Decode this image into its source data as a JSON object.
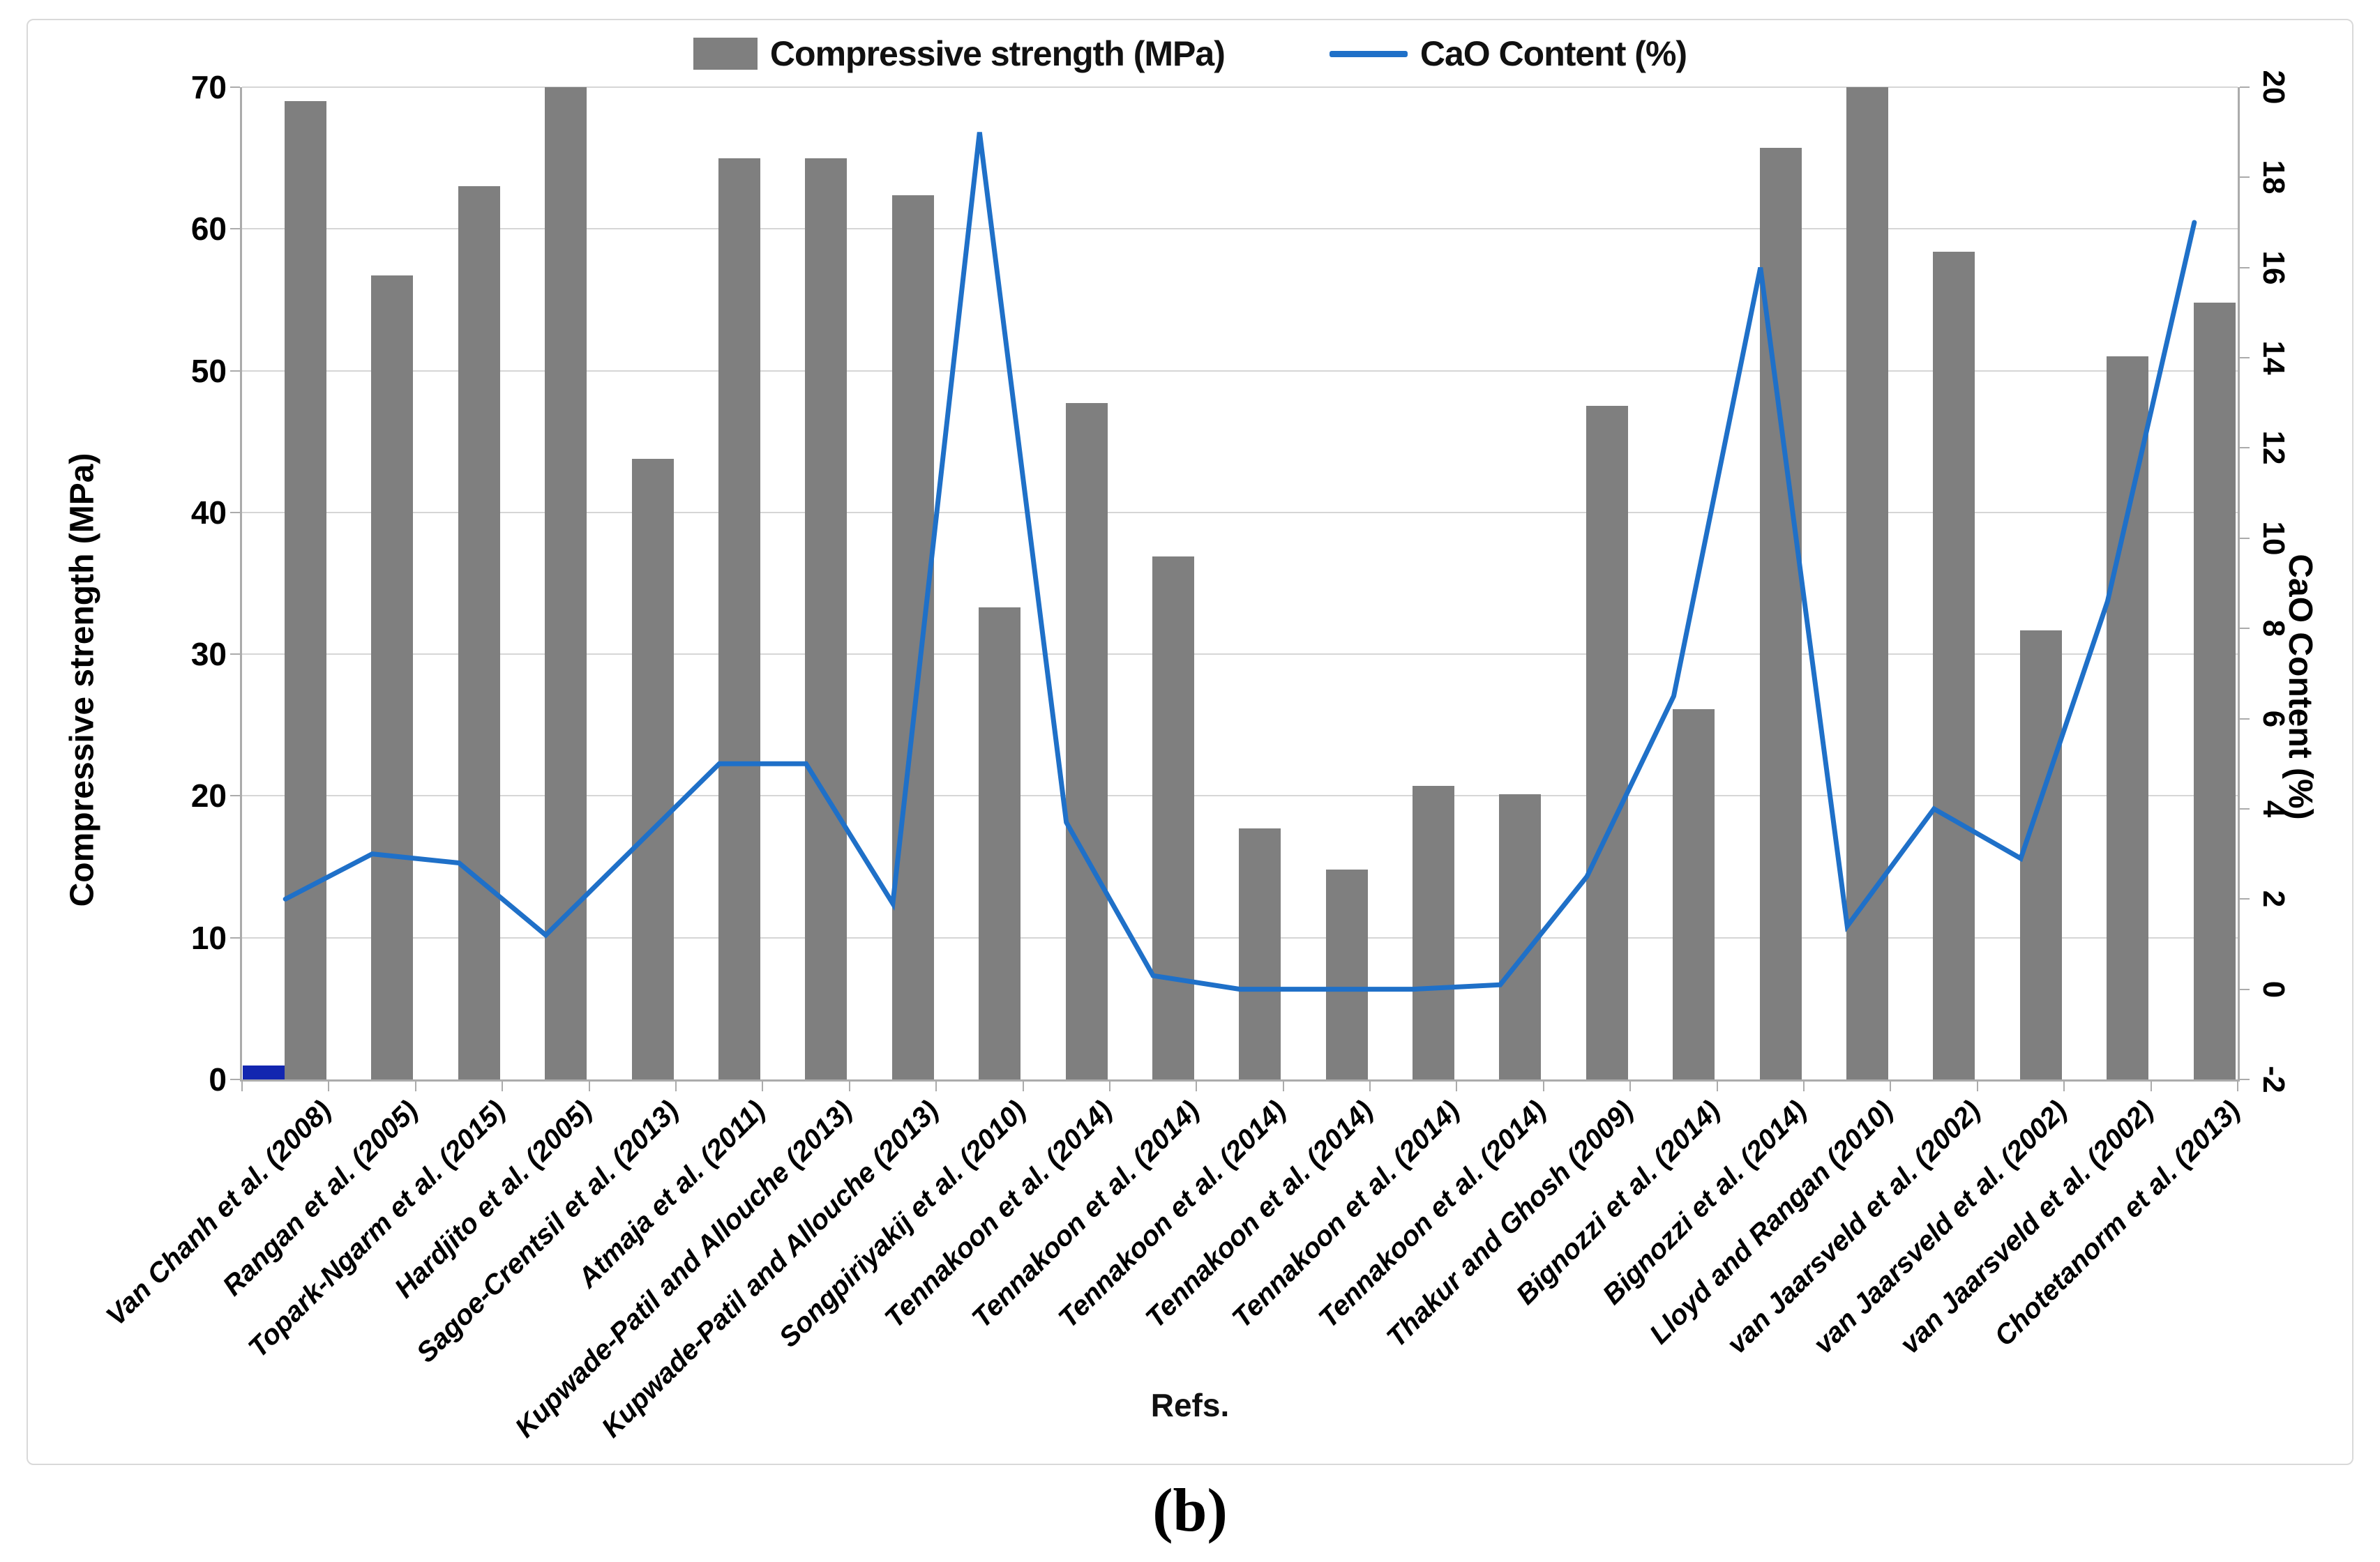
{
  "figure_caption": "(b)",
  "legend": {
    "bar_label": "Compressive strength (MPa)",
    "line_label": "CaO Content (%)"
  },
  "colors": {
    "bar": "#7f7f7f",
    "highlight_bar": "#1226b0",
    "line": "#1f70c8",
    "gridline": "#d6d6d6",
    "axis": "#ababab",
    "frame_border": "#d9d9d9"
  },
  "chart_data": {
    "type": "bar",
    "subtype": "combo bar + line, dual y-axis",
    "x_axis_title": "Refs.",
    "left_axis": {
      "title": "Compressive strength (MPa)",
      "min": 0,
      "max": 70,
      "ticks": [
        0,
        10,
        20,
        30,
        40,
        50,
        60,
        70
      ]
    },
    "right_axis": {
      "title": "CaO Content (%)",
      "min": -2,
      "max": 20,
      "ticks": [
        -2,
        0,
        2,
        4,
        6,
        8,
        10,
        12,
        14,
        16,
        18,
        20
      ]
    },
    "grid": "horizontal gridlines every 10 MPa",
    "legend_position": "top-center",
    "categories": [
      "Van Chanh et al. (2008)",
      "Rangan et al. (2005)",
      "Topark-Ngarm et al. (2015)",
      "Hardjito et al. (2005)",
      "Sagoe-Crentsil et al. (2013)",
      "Atmaja et al. (2011)",
      "Kupwade-Patil and Allouche (2013)",
      "Kupwade-Patil and Allouche (2013)",
      "Songpiriyakij et al. (2010)",
      "Tennakoon et al. (2014)",
      "Tennakoon et al. (2014)",
      "Tennakoon et al. (2014)",
      "Tennakoon et al. (2014)",
      "Tennakoon et al. (2014)",
      "Tennakoon et al. (2014)",
      "Thakur and Ghosh (2009)",
      "Bignozzi et al. (2014)",
      "Bignozzi et al. (2014)",
      "Lloyd and Rangan (2010)",
      "van Jaarsveld et al. (2002)",
      "van Jaarsveld et al. (2002)",
      "van Jaarsveld et al. (2002)",
      "Chotetanorm et al. (2013)"
    ],
    "series": [
      {
        "name": "Compressive strength (MPa)",
        "type": "bar",
        "axis": "left",
        "color": "#7f7f7f",
        "values": [
          69,
          56.7,
          63,
          70,
          43.8,
          65,
          65,
          62.4,
          33.3,
          47.7,
          36.9,
          17.7,
          14.8,
          20.7,
          20.1,
          47.5,
          26.1,
          65.7,
          70,
          58.4,
          31.7,
          51,
          54.8
        ]
      },
      {
        "name": "Highlighted bar (first category)",
        "type": "bar",
        "axis": "left",
        "color": "#1226b0",
        "values": [
          1,
          0,
          0,
          0,
          0,
          0,
          0,
          0,
          0,
          0,
          0,
          0,
          0,
          0,
          0,
          0,
          0,
          0,
          0,
          0,
          0,
          0,
          0
        ]
      },
      {
        "name": "CaO Content (%)",
        "type": "line",
        "axis": "right",
        "color": "#1f70c8",
        "values": [
          2,
          3,
          2.8,
          1.2,
          3.1,
          5,
          5,
          1.9,
          19,
          3.7,
          0.3,
          0,
          0,
          0,
          0.1,
          2.5,
          6.5,
          16,
          1.4,
          4,
          2.9,
          8.6,
          17
        ]
      }
    ]
  }
}
